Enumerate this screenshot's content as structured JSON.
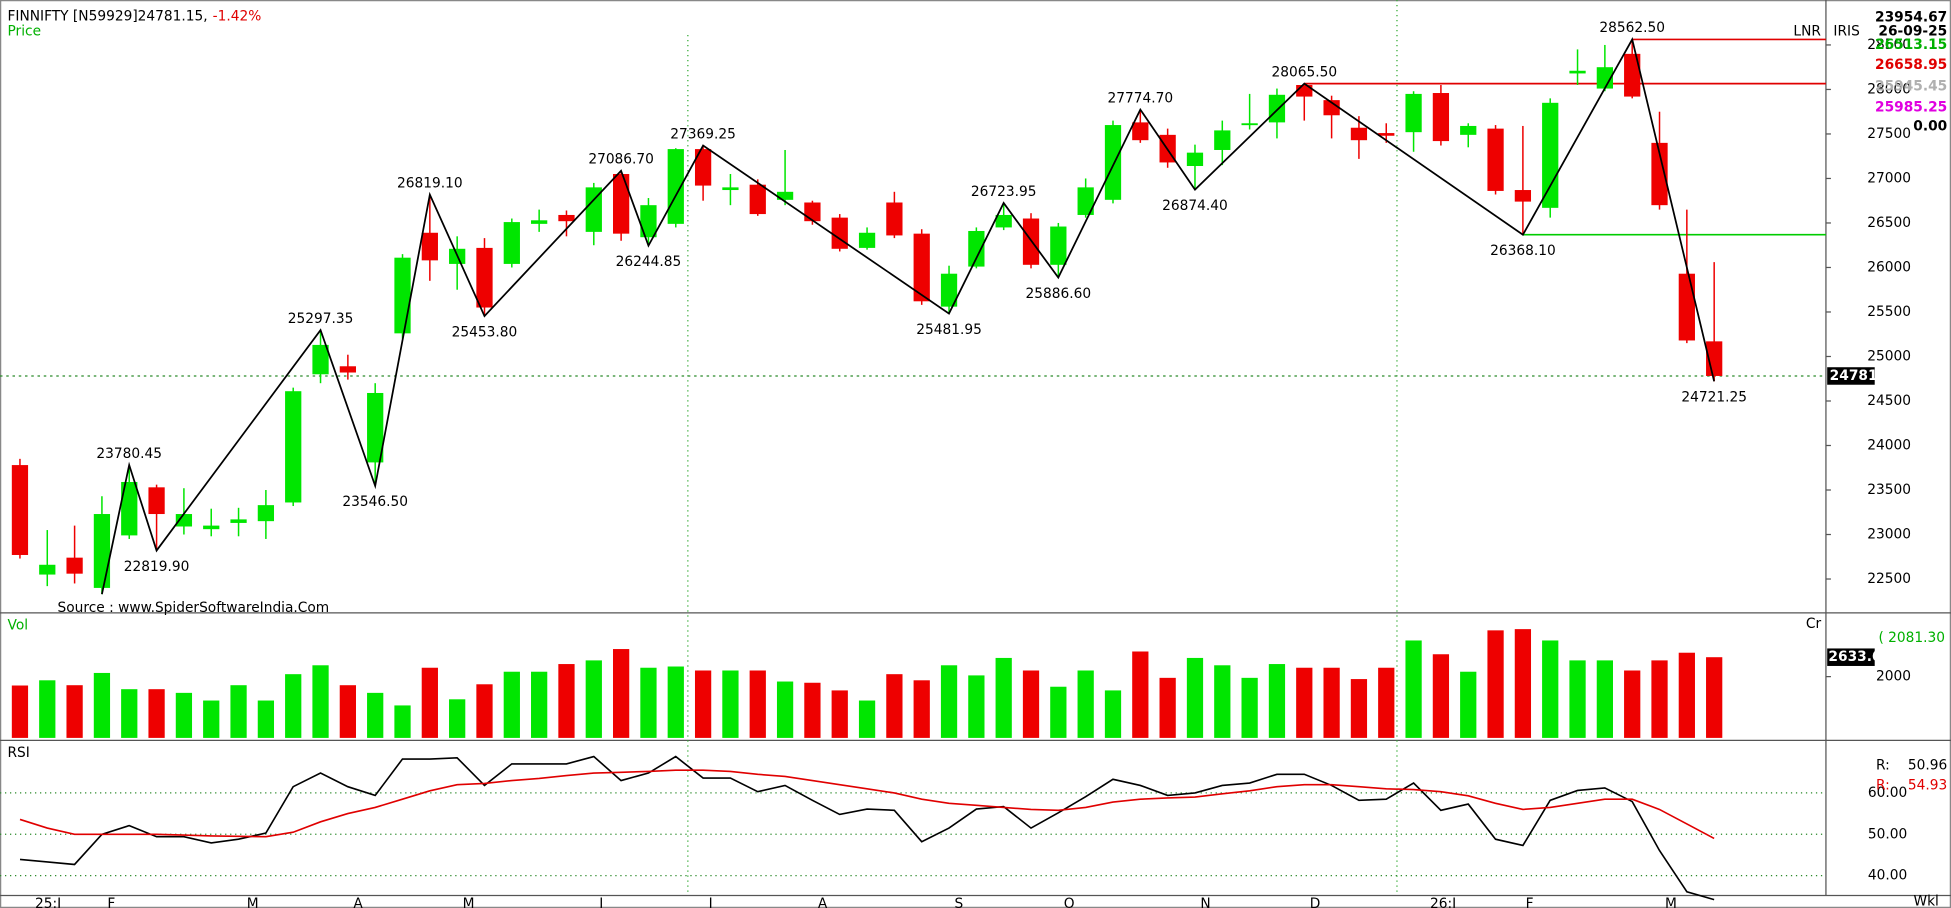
{
  "chart_data": [
    {
      "type": "candlestick",
      "title": "FINNIFTY [N59929]24781.15,",
      "change": "-1.42%",
      "subtitle": "Price",
      "source": "Source : www.SpiderSoftwareIndia.Com",
      "corner_labels": [
        "LNR",
        "IRIS"
      ],
      "info": [
        {
          "label": "23954.67",
          "color": "#000000"
        },
        {
          "label": "26-09-25",
          "color": "#000000"
        },
        {
          "label": "26513.15",
          "color": "#00b000"
        },
        {
          "label": "26658.95",
          "color": "#e00000"
        },
        {
          "label": "25945.45",
          "color": "#b0b0b0"
        },
        {
          "label": "25985.25",
          "color": "#e000e0"
        },
        {
          "label": "0.00",
          "color": "#000000"
        }
      ],
      "up_color": "#00e600",
      "down_color": "#ee0000",
      "xlim": [
        -0.73,
        66.09
      ],
      "xticks": [
        {
          "value": 0.55,
          "label": "25:J"
        },
        {
          "value": 3.2,
          "label": "F"
        },
        {
          "value": 8.3,
          "label": "M"
        },
        {
          "value": 12.2,
          "label": "A"
        },
        {
          "value": 16.2,
          "label": "M"
        },
        {
          "value": 21.2,
          "label": "J"
        },
        {
          "value": 25.2,
          "label": "J"
        },
        {
          "value": 29.2,
          "label": "A"
        },
        {
          "value": 34.2,
          "label": "S"
        },
        {
          "value": 38.2,
          "label": "O"
        },
        {
          "value": 43.2,
          "label": "N"
        },
        {
          "value": 47.2,
          "label": "D"
        },
        {
          "value": 51.6,
          "label": "26:J"
        },
        {
          "value": 55.1,
          "label": "F"
        },
        {
          "value": 60.2,
          "label": "M"
        }
      ],
      "x_unit": "Wkl",
      "ylim": [
        22120,
        29005
      ],
      "yticks": [
        22500,
        23000,
        23500,
        24000,
        24500,
        25000,
        25500,
        26000,
        26500,
        27000,
        27500,
        28000,
        28500
      ],
      "open": [
        23780,
        22550,
        22740,
        22400,
        22990,
        23530,
        23090,
        23060,
        23130,
        23150,
        23360,
        24800,
        24890,
        23810,
        25260,
        26390,
        26040,
        26220,
        26040,
        26490,
        26590,
        26400,
        27050,
        26340,
        26490,
        27330,
        26870,
        26930,
        26760,
        26730,
        26560,
        26220,
        26730,
        26380,
        25560,
        26010,
        26450,
        26550,
        26030,
        26590,
        26760,
        27630,
        27490,
        27140,
        27320,
        27600,
        27630,
        28050,
        27880,
        27570,
        27510,
        27520,
        27960,
        27490,
        27560,
        26870,
        26670,
        28180,
        28010,
        28400,
        27400,
        25930,
        25170
      ],
      "high": [
        23850,
        23050,
        23100,
        23430,
        23780.45,
        23560,
        23520,
        23290,
        23300,
        23500,
        24650,
        25297.35,
        25020,
        24700,
        26150,
        26819.1,
        26350,
        26330,
        26550,
        26650,
        26640,
        26950,
        27086.7,
        26780,
        27340,
        27369.25,
        27050,
        26990,
        27320,
        26750,
        26600,
        26450,
        26850,
        26430,
        26020,
        26450,
        26723.95,
        26610,
        26500,
        27000,
        27650,
        27774.7,
        27560,
        27380,
        27650,
        27950,
        28010,
        28065.5,
        27930,
        27700,
        27620,
        27980,
        28050,
        27620,
        27600,
        27590,
        27900,
        28450,
        28500,
        28562.5,
        27750,
        26650,
        26060
      ],
      "low": [
        22730,
        22420,
        22450,
        22330,
        22950,
        22819.9,
        23000,
        22980,
        22980,
        22950,
        23320,
        24700,
        24740,
        23546.5,
        25200,
        25850,
        25750,
        25453.8,
        26000,
        26400,
        26350,
        26250,
        26300,
        26244.85,
        26450,
        26750,
        26700,
        26580,
        26700,
        26480,
        26180,
        26200,
        26330,
        25580,
        25481.95,
        25990,
        26420,
        25990,
        25886.6,
        26560,
        26720,
        27400,
        27120,
        26874.4,
        27150,
        27550,
        27450,
        27650,
        27450,
        27220,
        27400,
        27300,
        27370,
        27350,
        26820,
        26368.1,
        26560,
        28050,
        27980,
        27900,
        26650,
        25150,
        24721.25
      ],
      "close": [
        22770,
        22660,
        22560,
        23230,
        23590,
        23230,
        23230,
        23100,
        23170,
        23330,
        24610,
        25130,
        24820,
        24590,
        26110,
        26080,
        26210,
        25550,
        26510,
        26530,
        26520,
        26900,
        26380,
        26700,
        27330,
        26920,
        26900,
        26600,
        26850,
        26520,
        26210,
        26390,
        26360,
        25620,
        25930,
        26410,
        26590,
        26030,
        26460,
        26900,
        27600,
        27430,
        27180,
        27290,
        27540,
        27620,
        27940,
        27920,
        27710,
        27430,
        27480,
        27950,
        27420,
        27590,
        26860,
        26740,
        27850,
        28210,
        28250,
        27920,
        26700,
        25180,
        24781.15
      ],
      "pivots": [
        {
          "candle": 3,
          "value": 22330
        },
        {
          "candle": 4,
          "value": 23780.45,
          "label": "23780.45"
        },
        {
          "candle": 5,
          "value": 22819.9,
          "label": "22819.90"
        },
        {
          "candle": 11,
          "value": 25297.35,
          "label": "25297.35"
        },
        {
          "candle": 13,
          "value": 23546.5,
          "label": "23546.50"
        },
        {
          "candle": 15,
          "value": 26819.1,
          "label": "26819.10"
        },
        {
          "candle": 17,
          "value": 25453.8,
          "label": "25453.80"
        },
        {
          "candle": 22,
          "value": 27086.7,
          "label": "27086.70"
        },
        {
          "candle": 23,
          "value": 26244.85,
          "label": "26244.85"
        },
        {
          "candle": 25,
          "value": 27369.25,
          "label": "27369.25"
        },
        {
          "candle": 34,
          "value": 25481.95,
          "label": "25481.95"
        },
        {
          "candle": 36,
          "value": 26723.95,
          "label": "26723.95"
        },
        {
          "candle": 38,
          "value": 25886.6,
          "label": "25886.60"
        },
        {
          "candle": 41,
          "value": 27774.7,
          "label": "27774.70"
        },
        {
          "candle": 43,
          "value": 26874.4,
          "label": "26874.40"
        },
        {
          "candle": 47,
          "value": 28065.5,
          "label": "28065.50"
        },
        {
          "candle": 55,
          "value": 26368.1,
          "label": "26368.10"
        },
        {
          "candle": 59,
          "value": 28562.5,
          "label": "28562.50"
        },
        {
          "candle": 62,
          "value": 24721.25,
          "label": "24721.25"
        }
      ],
      "levels": [
        {
          "value": 28562.5,
          "from": 59,
          "color": "#e00000"
        },
        {
          "value": 28065.5,
          "from": 47,
          "color": "#e00000"
        },
        {
          "value": 26368.1,
          "from": 55,
          "color": "#00cc00"
        }
      ],
      "last": 24781
    },
    {
      "type": "bar",
      "title": "Vol",
      "unit": "Cr",
      "reading": "( 2081.30",
      "reading_color": "#00b000",
      "ylim": [
        0,
        4000
      ],
      "yticks": [
        2000
      ],
      "values": [
        1710,
        1880,
        1720,
        2120,
        1590,
        1590,
        1470,
        1220,
        1720,
        1220,
        2080,
        2370,
        1720,
        1470,
        1060,
        2290,
        1260,
        1750,
        2160,
        2160,
        2410,
        2530,
        2900,
        2290,
        2330,
        2200,
        2200,
        2200,
        1840,
        1800,
        1550,
        1220,
        2080,
        1880,
        2370,
        2040,
        2610,
        2200,
        1670,
        2200,
        1550,
        2820,
        1960,
        2610,
        2370,
        1960,
        2410,
        2290,
        2290,
        1920,
        2290,
        3180,
        2730,
        2160,
        3510,
        3550,
        3180,
        2530,
        2530,
        2200,
        2530,
        2780,
        2633.6
      ]
    },
    {
      "type": "line",
      "title": "RSI",
      "ylim": [
        35.2,
        72.7
      ],
      "yticks": [
        {
          "value": 60,
          "label": "60.00"
        },
        {
          "value": 50,
          "label": "50.00"
        },
        {
          "value": 40,
          "label": "40.00"
        }
      ],
      "grid": true,
      "series": [
        {
          "name": "R:",
          "color": "#000000",
          "reading": 50.96,
          "values": [
            43.9,
            43.3,
            42.7,
            50,
            52.1,
            49.4,
            49.4,
            47.9,
            48.8,
            50.3,
            61.5,
            64.8,
            61.5,
            59.4,
            68.2,
            68.2,
            68.5,
            61.8,
            67,
            67,
            67,
            68.8,
            63,
            64.8,
            68.8,
            63.6,
            63.6,
            60.3,
            61.8,
            58.2,
            54.8,
            56.1,
            55.8,
            48.2,
            51.5,
            56.1,
            56.7,
            51.5,
            55.2,
            59.1,
            63.3,
            61.8,
            59.4,
            60,
            61.8,
            62.4,
            64.5,
            64.5,
            61.8,
            58.2,
            58.5,
            62.4,
            55.8,
            57.3,
            48.8,
            47.3,
            58.2,
            60.6,
            61.2,
            57.9,
            46.1,
            36.1,
            34.2
          ]
        },
        {
          "name": "R:",
          "color": "#e00000",
          "reading": 54.93,
          "values": [
            53.6,
            51.5,
            50,
            50,
            50,
            50,
            49.8,
            49.6,
            49.5,
            49.4,
            50.5,
            53,
            55,
            56.5,
            58.5,
            60.5,
            62,
            62.3,
            63,
            63.5,
            64.2,
            64.8,
            65,
            65.2,
            65.5,
            65.5,
            65.2,
            64.5,
            64,
            63,
            62,
            61,
            60,
            58.5,
            57.5,
            57,
            56.5,
            56,
            55.8,
            56.5,
            57.8,
            58.5,
            58.8,
            59,
            59.8,
            60.5,
            61.5,
            62,
            62,
            61.5,
            61,
            60.8,
            60.3,
            59.3,
            57.5,
            56,
            56.5,
            57.5,
            58.5,
            58.5,
            56,
            52.5,
            49
          ]
        }
      ]
    }
  ]
}
